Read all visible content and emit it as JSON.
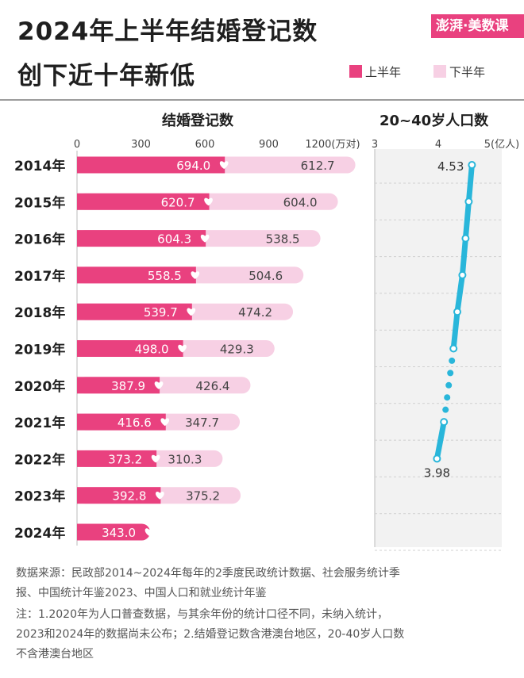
{
  "title_line1": "2024年上半年结婚登记数",
  "title_line2": "创下近十年新低",
  "brand": "澎湃·美数课",
  "legend": [
    {
      "label": "上半年",
      "color": "#e9417f"
    },
    {
      "label": "下半年",
      "color": "#f7d0e4"
    }
  ],
  "left_subtitle": "结婚登记数",
  "right_subtitle": "20~40岁人口数",
  "notes": [
    "数据来源：民政部2014~2024年每年的2季度民政统计数据、社会服务统计季",
    "报、中国统计年鉴2023、中国人口和就业统计年鉴",
    "注：1.2020年为人口普查数据，与其余年份的统计口径不同，未纳入统计，",
    "2023和2024年的数据尚未公布；2.结婚登记数含港澳台地区，20-40岁人口数",
    "不含港澳台地区"
  ],
  "chart_data": [
    {
      "type": "bar",
      "stacked": true,
      "orientation": "horizontal",
      "title": "结婚登记数",
      "categories": [
        "2014年",
        "2015年",
        "2016年",
        "2017年",
        "2018年",
        "2019年",
        "2020年",
        "2021年",
        "2022年",
        "2023年",
        "2024年"
      ],
      "series": [
        {
          "name": "上半年",
          "color": "#e9417f",
          "values": [
            694.0,
            620.7,
            604.3,
            558.5,
            539.7,
            498.0,
            387.9,
            416.6,
            373.2,
            392.8,
            343.0
          ]
        },
        {
          "name": "下半年",
          "color": "#f7d0e4",
          "values": [
            612.7,
            604.0,
            538.5,
            504.6,
            474.2,
            429.3,
            426.4,
            347.7,
            310.3,
            375.2,
            null
          ]
        }
      ],
      "value_labels": {
        "上半年": [
          "694.0",
          "620.7",
          "604.3",
          "558.5",
          "539.7",
          "498.0",
          "387.9",
          "416.6",
          "373.2",
          "392.8",
          "343.0"
        ],
        "下半年": [
          "612.7",
          "604.0",
          "538.5",
          "504.6",
          "474.2",
          "429.3",
          "426.4",
          "347.7",
          "310.3",
          "375.2",
          ""
        ]
      },
      "xticks": [
        0,
        300,
        600,
        900,
        1200
      ],
      "xtick_labels": [
        "0",
        "300",
        "600",
        "900",
        "1200(万对)"
      ],
      "xlim": [
        0,
        1200
      ]
    },
    {
      "type": "line",
      "title": "20~40岁人口数",
      "categories": [
        "2014年",
        "2015年",
        "2016年",
        "2017年",
        "2018年",
        "2019年",
        "2020年",
        "2021年",
        "2022年",
        "2023年",
        "2024年"
      ],
      "series": [
        {
          "color": "#29b6da",
          "values": [
            4.53,
            4.48,
            4.43,
            4.38,
            4.3,
            4.24,
            null,
            4.09,
            3.98,
            null,
            null
          ]
        }
      ],
      "gap_segment": {
        "from": "2019年",
        "to": "2021年",
        "style": "dotted"
      },
      "point_labels": {
        "2014年": "4.53",
        "2022年": "3.98"
      },
      "xticks": [
        3,
        4,
        5
      ],
      "xtick_labels": [
        "3",
        "4",
        "5(亿人)"
      ],
      "xlim": [
        3,
        5
      ],
      "grid": true
    }
  ]
}
